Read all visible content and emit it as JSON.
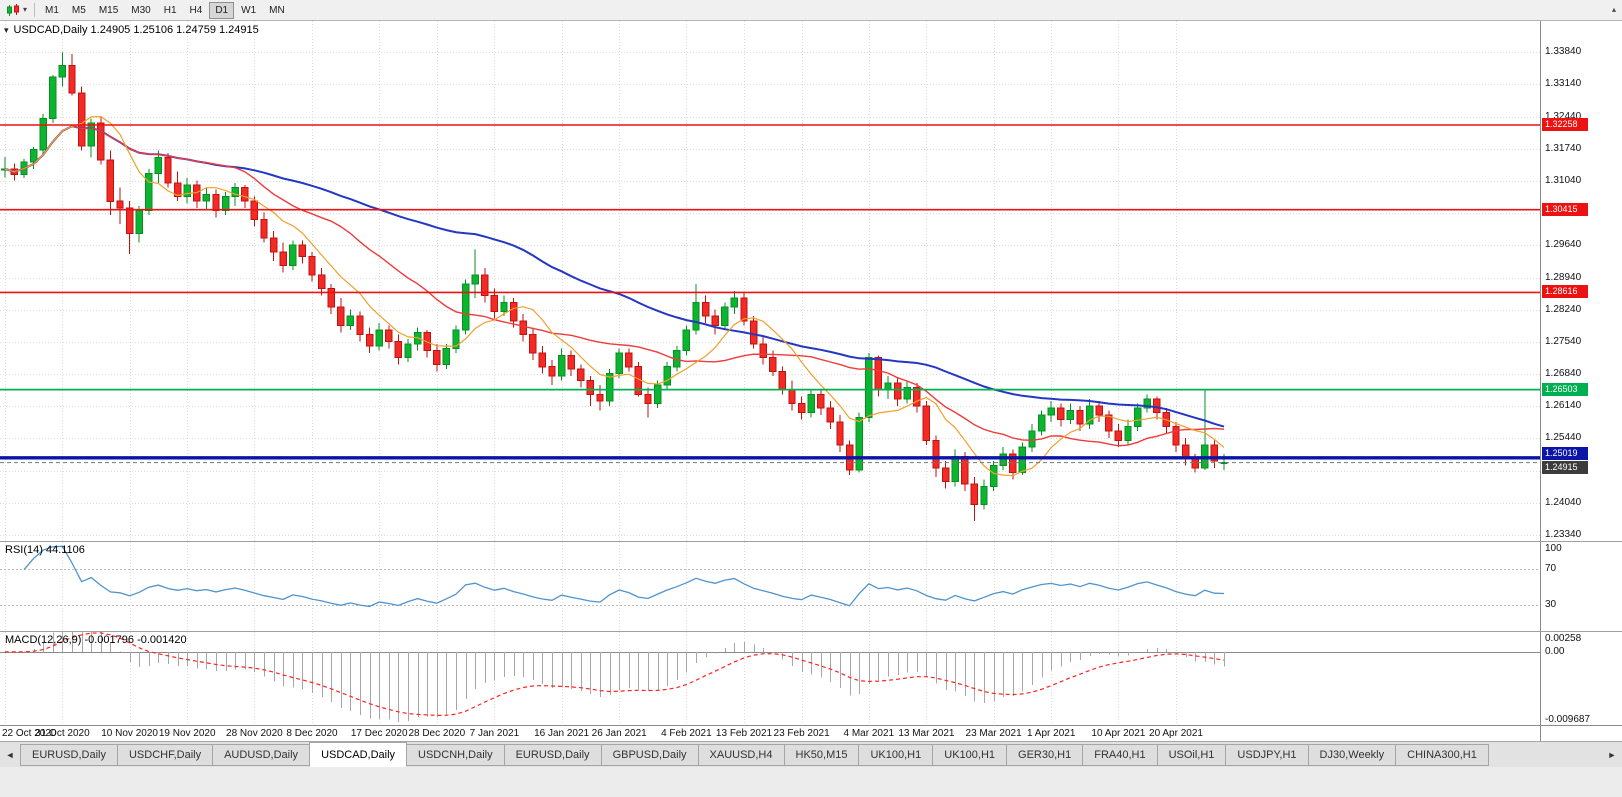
{
  "toolbar": {
    "timeframes": [
      "M1",
      "M5",
      "M15",
      "M30",
      "H1",
      "H4",
      "D1",
      "W1",
      "MN"
    ],
    "active_timeframe": "D1",
    "dropdown_caret": "▾",
    "scroll_up_icon": "▴"
  },
  "chart_header": {
    "text": "USDCAD,Daily 1.24905 1.25106 1.24759 1.24915"
  },
  "chart_data": {
    "type": "candlestick",
    "symbol": "USDCAD",
    "timeframe": "Daily",
    "ohlc_display": {
      "open": "1.24905",
      "high": "1.25106",
      "low": "1.24759",
      "close": "1.24915"
    },
    "price_range": {
      "top": 1.3452,
      "bottom": 1.2321
    },
    "y_axis_labels": [
      "1.33840",
      "1.33140",
      "1.32440",
      "1.31740",
      "1.31040",
      "1.30340",
      "1.29640",
      "1.28940",
      "1.28240",
      "1.27540",
      "1.26840",
      "1.26140",
      "1.25440",
      "1.24740",
      "1.24040",
      "1.23340"
    ],
    "x_axis_labels": [
      "22 Oct 2020",
      "31 Oct 2020",
      "10 Nov 2020",
      "19 Nov 2020",
      "28 Nov 2020",
      "8 Dec 2020",
      "17 Dec 2020",
      "28 Dec 2020",
      "7 Jan 2021",
      "16 Jan 2021",
      "26 Jan 2021",
      "4 Feb 2021",
      "13 Feb 2021",
      "23 Feb 2021",
      "4 Mar 2021",
      "13 Mar 2021",
      "23 Mar 2021",
      "1 Apr 2021",
      "10 Apr 2021",
      "20 Apr 2021"
    ],
    "horizontal_lines": [
      {
        "price": 1.32258,
        "label": "1.32258",
        "color": "#ee1111",
        "thickness": 1.6
      },
      {
        "price": 1.30415,
        "label": "1.30415",
        "color": "#ee1111",
        "thickness": 1.6
      },
      {
        "price": 1.28616,
        "label": "1.28616",
        "color": "#ee1111",
        "thickness": 1.6
      },
      {
        "price": 1.26503,
        "label": "1.26503",
        "color": "#00b050",
        "thickness": 1.8
      },
      {
        "price": 1.25019,
        "label": "1.25019",
        "color": "#0b16a8",
        "thickness": 3.4
      }
    ],
    "current_price": {
      "value": 1.24915,
      "label": "1.24915",
      "color": "#3c3c3c"
    },
    "moving_averages": [
      {
        "period": 50,
        "color": "#2337c4",
        "width": 2
      },
      {
        "period": 21,
        "color": "#ef3b3b",
        "width": 1.4
      },
      {
        "period": 8,
        "color": "#f0a02c",
        "width": 1.2
      }
    ],
    "candle_colors": {
      "up_fill": "#0cb52f",
      "up_stroke": "#078f23",
      "down_fill": "#f32b26",
      "down_stroke": "#c1120f"
    },
    "candles": [
      [
        1.3128,
        1.3156,
        1.3112,
        1.313
      ],
      [
        1.313,
        1.3142,
        1.3105,
        1.3118
      ],
      [
        1.3118,
        1.3152,
        1.311,
        1.3145
      ],
      [
        1.3145,
        1.3178,
        1.313,
        1.3172
      ],
      [
        1.3172,
        1.325,
        1.316,
        1.324
      ],
      [
        1.324,
        1.3335,
        1.323,
        1.333
      ],
      [
        1.333,
        1.3384,
        1.331,
        1.3355
      ],
      [
        1.3355,
        1.338,
        1.329,
        1.3295
      ],
      [
        1.3295,
        1.331,
        1.317,
        1.318
      ],
      [
        1.318,
        1.324,
        1.3155,
        1.323
      ],
      [
        1.323,
        1.3245,
        1.314,
        1.315
      ],
      [
        1.315,
        1.317,
        1.303,
        1.306
      ],
      [
        1.306,
        1.309,
        1.301,
        1.3045
      ],
      [
        1.3045,
        1.306,
        1.2945,
        1.299
      ],
      [
        1.299,
        1.305,
        1.297,
        1.304
      ],
      [
        1.304,
        1.313,
        1.303,
        1.312
      ],
      [
        1.312,
        1.317,
        1.31,
        1.3155
      ],
      [
        1.3155,
        1.3165,
        1.309,
        1.31
      ],
      [
        1.31,
        1.3125,
        1.306,
        1.307
      ],
      [
        1.307,
        1.311,
        1.3055,
        1.3095
      ],
      [
        1.3095,
        1.3105,
        1.3045,
        1.306
      ],
      [
        1.306,
        1.309,
        1.304,
        1.3075
      ],
      [
        1.3075,
        1.3085,
        1.3025,
        1.304
      ],
      [
        1.304,
        1.308,
        1.303,
        1.307
      ],
      [
        1.307,
        1.31,
        1.305,
        1.309
      ],
      [
        1.309,
        1.3095,
        1.3045,
        1.306
      ],
      [
        1.306,
        1.307,
        1.3005,
        1.302
      ],
      [
        1.302,
        1.3035,
        1.297,
        1.298
      ],
      [
        1.298,
        1.2995,
        1.293,
        1.295
      ],
      [
        1.295,
        1.297,
        1.2905,
        1.292
      ],
      [
        1.292,
        1.2975,
        1.291,
        1.2965
      ],
      [
        1.2965,
        1.2975,
        1.2925,
        1.294
      ],
      [
        1.294,
        1.295,
        1.2885,
        1.29
      ],
      [
        1.29,
        1.2915,
        1.2855,
        1.287
      ],
      [
        1.287,
        1.288,
        1.2815,
        1.283
      ],
      [
        1.283,
        1.285,
        1.2775,
        1.279
      ],
      [
        1.279,
        1.2825,
        1.278,
        1.281
      ],
      [
        1.281,
        1.282,
        1.2755,
        1.277
      ],
      [
        1.277,
        1.2785,
        1.273,
        1.2745
      ],
      [
        1.2745,
        1.2795,
        1.2735,
        1.278
      ],
      [
        1.278,
        1.279,
        1.274,
        1.2755
      ],
      [
        1.2755,
        1.277,
        1.2705,
        1.272
      ],
      [
        1.272,
        1.276,
        1.271,
        1.275
      ],
      [
        1.275,
        1.2785,
        1.2735,
        1.2775
      ],
      [
        1.2775,
        1.278,
        1.272,
        1.2735
      ],
      [
        1.2735,
        1.275,
        1.269,
        1.2705
      ],
      [
        1.2705,
        1.275,
        1.2695,
        1.274
      ],
      [
        1.274,
        1.279,
        1.273,
        1.278
      ],
      [
        1.278,
        1.289,
        1.277,
        1.288
      ],
      [
        1.288,
        1.2955,
        1.285,
        1.29
      ],
      [
        1.29,
        1.2915,
        1.284,
        1.2855
      ],
      [
        1.2855,
        1.287,
        1.2805,
        1.282
      ],
      [
        1.282,
        1.2855,
        1.281,
        1.284
      ],
      [
        1.284,
        1.285,
        1.2785,
        1.28
      ],
      [
        1.28,
        1.2815,
        1.2755,
        1.277
      ],
      [
        1.277,
        1.2785,
        1.2715,
        1.273
      ],
      [
        1.273,
        1.2745,
        1.2685,
        1.27
      ],
      [
        1.27,
        1.2715,
        1.266,
        1.268
      ],
      [
        1.268,
        1.274,
        1.267,
        1.2725
      ],
      [
        1.2725,
        1.2735,
        1.268,
        1.2695
      ],
      [
        1.2695,
        1.2705,
        1.2655,
        1.267
      ],
      [
        1.267,
        1.268,
        1.2615,
        1.264
      ],
      [
        1.264,
        1.266,
        1.2605,
        1.2625
      ],
      [
        1.2625,
        1.2695,
        1.2615,
        1.2685
      ],
      [
        1.2685,
        1.274,
        1.2675,
        1.273
      ],
      [
        1.273,
        1.274,
        1.269,
        1.27
      ],
      [
        1.27,
        1.271,
        1.2635,
        1.264
      ],
      [
        1.264,
        1.2655,
        1.259,
        1.262
      ],
      [
        1.262,
        1.267,
        1.261,
        1.266
      ],
      [
        1.266,
        1.271,
        1.265,
        1.27
      ],
      [
        1.27,
        1.2745,
        1.269,
        1.2735
      ],
      [
        1.2735,
        1.279,
        1.2725,
        1.278
      ],
      [
        1.278,
        1.288,
        1.277,
        1.284
      ],
      [
        1.284,
        1.2855,
        1.2795,
        1.281
      ],
      [
        1.281,
        1.2825,
        1.277,
        1.279
      ],
      [
        1.279,
        1.284,
        1.278,
        1.283
      ],
      [
        1.283,
        1.2865,
        1.2815,
        1.285
      ],
      [
        1.285,
        1.286,
        1.279,
        1.28
      ],
      [
        1.28,
        1.281,
        1.274,
        1.275
      ],
      [
        1.275,
        1.2765,
        1.2705,
        1.272
      ],
      [
        1.272,
        1.2735,
        1.268,
        1.269
      ],
      [
        1.269,
        1.27,
        1.264,
        1.265
      ],
      [
        1.265,
        1.267,
        1.2605,
        1.262
      ],
      [
        1.262,
        1.2635,
        1.2585,
        1.26
      ],
      [
        1.26,
        1.265,
        1.259,
        1.264
      ],
      [
        1.264,
        1.265,
        1.2595,
        1.261
      ],
      [
        1.261,
        1.2625,
        1.2565,
        1.258
      ],
      [
        1.258,
        1.2595,
        1.2515,
        1.253
      ],
      [
        1.253,
        1.254,
        1.2465,
        1.2475
      ],
      [
        1.2475,
        1.26,
        1.247,
        1.259
      ],
      [
        1.259,
        1.273,
        1.258,
        1.272
      ],
      [
        1.272,
        1.2725,
        1.2635,
        1.265
      ],
      [
        1.265,
        1.268,
        1.263,
        1.2665
      ],
      [
        1.2665,
        1.2675,
        1.2615,
        1.263
      ],
      [
        1.263,
        1.267,
        1.262,
        1.2655
      ],
      [
        1.2655,
        1.2665,
        1.26,
        1.2615
      ],
      [
        1.2615,
        1.2625,
        1.253,
        1.254
      ],
      [
        1.254,
        1.255,
        1.246,
        1.248
      ],
      [
        1.248,
        1.2495,
        1.2435,
        1.245
      ],
      [
        1.245,
        1.252,
        1.244,
        1.2505
      ],
      [
        1.2505,
        1.2515,
        1.243,
        1.2445
      ],
      [
        1.2445,
        1.246,
        1.2365,
        1.24
      ],
      [
        1.24,
        1.2455,
        1.239,
        1.244
      ],
      [
        1.244,
        1.2495,
        1.243,
        1.2485
      ],
      [
        1.2485,
        1.2525,
        1.2475,
        1.251
      ],
      [
        1.251,
        1.252,
        1.2455,
        1.247
      ],
      [
        1.247,
        1.2535,
        1.2465,
        1.2525
      ],
      [
        1.2525,
        1.2575,
        1.2515,
        1.256
      ],
      [
        1.256,
        1.2605,
        1.255,
        1.2595
      ],
      [
        1.2595,
        1.2625,
        1.258,
        1.261
      ],
      [
        1.261,
        1.262,
        1.257,
        1.2585
      ],
      [
        1.2585,
        1.262,
        1.2575,
        1.2605
      ],
      [
        1.2605,
        1.2615,
        1.256,
        1.2575
      ],
      [
        1.2575,
        1.263,
        1.2565,
        1.2615
      ],
      [
        1.2615,
        1.2625,
        1.258,
        1.2595
      ],
      [
        1.2595,
        1.2605,
        1.2545,
        1.256
      ],
      [
        1.256,
        1.2575,
        1.2525,
        1.254
      ],
      [
        1.254,
        1.2585,
        1.253,
        1.257
      ],
      [
        1.257,
        1.262,
        1.256,
        1.261
      ],
      [
        1.261,
        1.264,
        1.26,
        1.263
      ],
      [
        1.263,
        1.2635,
        1.2585,
        1.26
      ],
      [
        1.26,
        1.261,
        1.2555,
        1.257
      ],
      [
        1.257,
        1.258,
        1.2515,
        1.253
      ],
      [
        1.253,
        1.2545,
        1.2485,
        1.25
      ],
      [
        1.25,
        1.251,
        1.247,
        1.248
      ],
      [
        1.248,
        1.265,
        1.2475,
        1.253
      ],
      [
        1.253,
        1.254,
        1.248,
        1.2495
      ],
      [
        1.24905,
        1.25106,
        1.24759,
        1.24915
      ]
    ]
  },
  "rsi": {
    "label": "RSI(14) 44.1106",
    "period": 14,
    "value": 44.1106,
    "axis_labels": [
      "100",
      "70",
      "30"
    ],
    "levels": [
      70,
      30
    ],
    "line_color": "#4f94cd"
  },
  "macd": {
    "label": "MACD(12,26,9) -0.001796 -0.001420",
    "fast": 12,
    "slow": 26,
    "signal_period": 9,
    "values": [
      "-0.001796",
      "-0.001420"
    ],
    "axis_labels": [
      "0.00258",
      "0.00",
      "-0.009687"
    ],
    "range": {
      "max": 0.00258,
      "min": -0.009687
    },
    "histogram_color": "#a6a6a6",
    "signal_color": "#ff2222"
  },
  "tabs": {
    "items": [
      "EURUSD,Daily",
      "USDCHF,Daily",
      "AUDUSD,Daily",
      "USDCAD,Daily",
      "USDCNH,Daily",
      "EURUSD,Daily",
      "GBPUSD,Daily",
      "XAUUSD,H4",
      "HK50,M15",
      "UK100,H1",
      "UK100,H1",
      "GER30,H1",
      "FRA40,H1",
      "USOil,H1",
      "USDJPY,H1",
      "DJ30,Weekly",
      "CHINA300,H1"
    ],
    "active_index": 3,
    "left_arrow": "◄",
    "right_arrow": "►"
  }
}
